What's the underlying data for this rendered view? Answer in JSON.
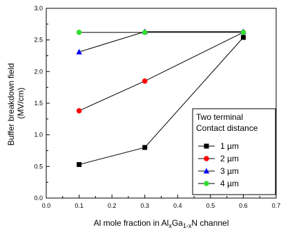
{
  "chart_data": {
    "type": "line",
    "xlabel_parts": {
      "pre": "Al mole fraction in Al",
      "sub1": "x",
      "mid": "Ga",
      "sub2": "1-x",
      "post": "N channel"
    },
    "ylabel_lines": [
      "Buffer breakdown field",
      "(MV/cm)"
    ],
    "xlim": [
      0.0,
      0.7
    ],
    "ylim": [
      0.0,
      3.0
    ],
    "x_ticks": [
      "0.0",
      "0.1",
      "0.2",
      "0.3",
      "0.4",
      "0.5",
      "0.6",
      "0.7"
    ],
    "y_ticks": [
      "0.0",
      "0.5",
      "1.0",
      "1.5",
      "2.0",
      "2.5",
      "3.0"
    ],
    "grid": false,
    "legend": {
      "title_lines": [
        "Two terminal",
        "Contact distance"
      ],
      "placement": "bottom-right"
    },
    "series": [
      {
        "name": "1 µm",
        "marker": "square",
        "color": "#000000",
        "x": [
          0.1,
          0.3,
          0.6
        ],
        "y": [
          0.53,
          0.8,
          2.54
        ]
      },
      {
        "name": "2 µm",
        "marker": "circle",
        "color": "#ff0000",
        "x": [
          0.1,
          0.3,
          0.6
        ],
        "y": [
          1.38,
          1.85,
          2.62
        ]
      },
      {
        "name": "3 µm",
        "marker": "triangle",
        "color": "#0000ff",
        "x": [
          0.1,
          0.3,
          0.6
        ],
        "y": [
          2.31,
          2.63,
          2.63
        ]
      },
      {
        "name": "4 µm",
        "marker": "circle",
        "color": "#33dd33",
        "x": [
          0.1,
          0.3,
          0.6
        ],
        "y": [
          2.62,
          2.62,
          2.62
        ]
      }
    ]
  }
}
